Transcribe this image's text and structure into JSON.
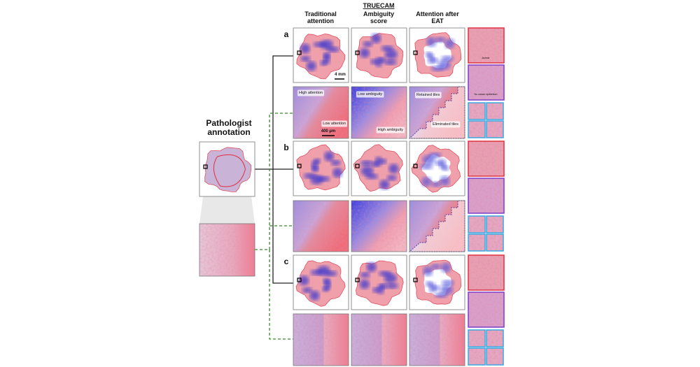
{
  "header": {
    "group": "TRUECAM",
    "columns": [
      [
        "Traditional",
        "attention"
      ],
      [
        "Ambiguity",
        "score"
      ],
      [
        "Attention after",
        "EAT"
      ]
    ]
  },
  "annotation": {
    "title": [
      "Pathologist",
      "annotation"
    ]
  },
  "rows": [
    {
      "label": "a"
    },
    {
      "label": "b"
    },
    {
      "label": "c"
    }
  ],
  "scale_bars": {
    "whole": "4 mm",
    "zoom": "400 µm"
  },
  "overlays": {
    "high_attention": "High attention",
    "low_attention": "Low attention",
    "low_ambiguity": "Low ambiguity",
    "high_ambiguity": "High ambiguity",
    "retained": "Retained tiles",
    "eliminated": "Eliminated tiles"
  },
  "tiles": {
    "acinar": "Acinar",
    "no_cancer": "No cancer epithelium"
  }
}
